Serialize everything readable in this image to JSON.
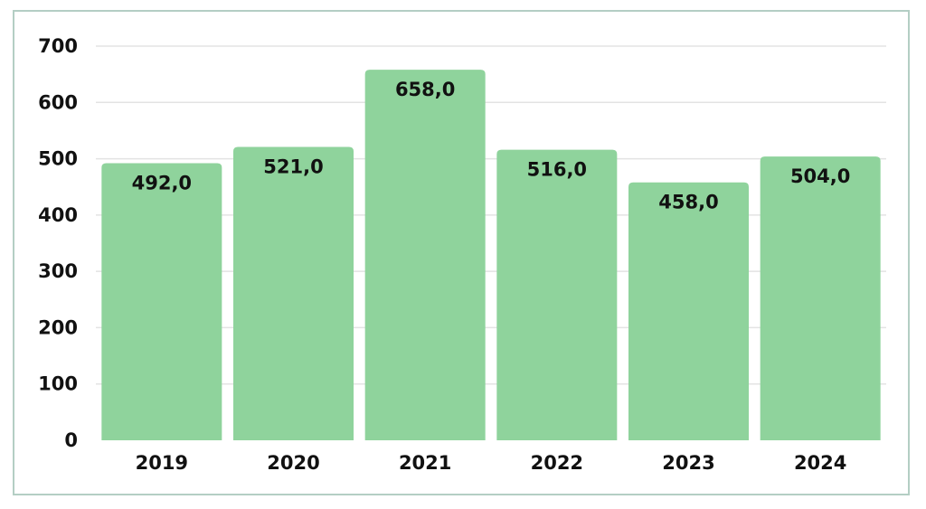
{
  "chart_data": {
    "type": "bar",
    "categories": [
      "2019",
      "2020",
      "2021",
      "2022",
      "2023",
      "2024"
    ],
    "values": [
      492,
      521,
      658,
      516,
      458,
      504
    ],
    "data_labels": [
      "492,0",
      "521,0",
      "658,0",
      "516,0",
      "458,0",
      "504,0"
    ],
    "title": "",
    "xlabel": "",
    "ylabel": "",
    "ylim": [
      0,
      700
    ],
    "yticks": [
      0,
      100,
      200,
      300,
      400,
      500,
      600,
      700
    ],
    "grid": true,
    "legend": "none",
    "bar_color": "#8fd39c",
    "gridline_color": "#e3e3e3",
    "border_color": "#b4cec4"
  }
}
